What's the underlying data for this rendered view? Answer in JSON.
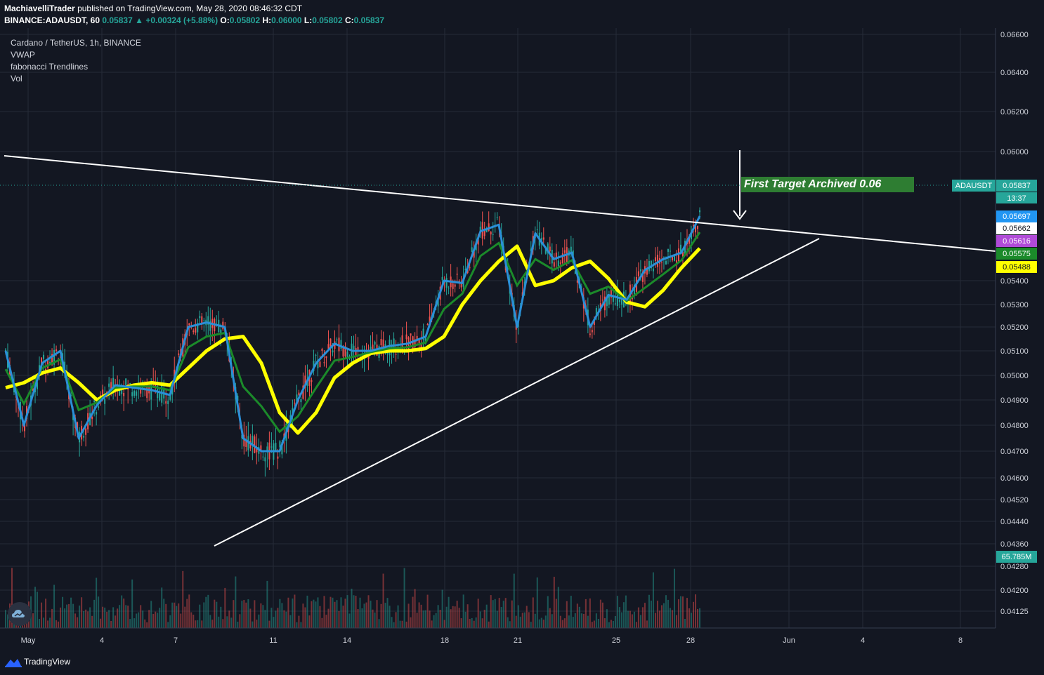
{
  "header": {
    "author": "MachiavelliTrader",
    "published": "published on TradingView.com, May 28, 2020 08:46:32 CDT",
    "symbol_interval": "BINANCE:ADAUSDT, 60",
    "last": "0.05837",
    "change": "+0.00324 (+5.88%)",
    "o_label": "O:",
    "o": "0.05802",
    "h_label": "H:",
    "h": "0.06000",
    "l_label": "L:",
    "l": "0.05802",
    "c_label": "C:",
    "c": "0.05837"
  },
  "legend": [
    "Cardano / TetherUS, 1h, BINANCE",
    "VWAP",
    "fabonacci Trendlines",
    "Vol"
  ],
  "annotation": "First Target Archived 0.06",
  "footer": {
    "brand": "TradingView"
  },
  "colors": {
    "background": "#131722",
    "grid": "#262b38",
    "up": "#26a69a",
    "down": "#ef5350",
    "ema_yellow": "#ffff00",
    "ema_green": "#1b8a2a",
    "ema_blue": "#2a8fd8",
    "ema_violet": "#b04ad8",
    "trendline": "#ffffff",
    "target_box": "#2e7d32"
  },
  "chart_data": {
    "type": "candlestick",
    "title": "Cardano / TetherUS, 1h, BINANCE",
    "x_tick_labels": [
      "May",
      "4",
      "7",
      "11",
      "14",
      "18",
      "21",
      "25",
      "28",
      "Jun",
      "4",
      "8"
    ],
    "y_tick_labels": [
      "0.06600",
      "0.06400",
      "0.06200",
      "0.06000",
      "0.05400",
      "0.05300",
      "0.05200",
      "0.05100",
      "0.05000",
      "0.04900",
      "0.04800",
      "0.04700",
      "0.04600",
      "0.04520",
      "0.04440",
      "0.04360",
      "0.04280",
      "0.04200",
      "0.04125"
    ],
    "price_badges": [
      {
        "label": "ADAUSDT",
        "value": "0.05837",
        "sub": "13:37",
        "color": "#26a69a"
      },
      {
        "value": "0.05697",
        "color": "#2196f3"
      },
      {
        "value": "0.05662",
        "color": "#ffffff"
      },
      {
        "value": "0.05616",
        "color": "#b04ad8"
      },
      {
        "value": "0.05575",
        "color": "#1b8a2a"
      },
      {
        "value": "0.05488",
        "color": "#ffff00"
      }
    ],
    "volume_badge": "65.785M",
    "ema_yellow": [
      0.0495,
      0.0497,
      0.0501,
      0.0503,
      0.0497,
      0.049,
      0.0494,
      0.0496,
      0.0497,
      0.0496,
      0.0503,
      0.051,
      0.0515,
      0.0516,
      0.0505,
      0.0485,
      0.0477,
      0.0485,
      0.0499,
      0.0505,
      0.0509,
      0.051,
      0.051,
      0.0511,
      0.0516,
      0.053,
      0.054,
      0.0549,
      0.0556,
      0.0538,
      0.054,
      0.0546,
      0.0549,
      0.0541,
      0.0531,
      0.0529,
      0.0536,
      0.0546,
      0.0555
    ],
    "ema_blue": [
      0.051,
      0.048,
      0.0505,
      0.051,
      0.0475,
      0.0488,
      0.0496,
      0.0495,
      0.0494,
      0.0492,
      0.052,
      0.0522,
      0.052,
      0.0475,
      0.047,
      0.047,
      0.049,
      0.0505,
      0.0513,
      0.051,
      0.051,
      0.0512,
      0.0513,
      0.0516,
      0.054,
      0.0539,
      0.0563,
      0.0566,
      0.052,
      0.0562,
      0.055,
      0.0553,
      0.052,
      0.0534,
      0.0532,
      0.0545,
      0.055,
      0.0553,
      0.057
    ]
  }
}
